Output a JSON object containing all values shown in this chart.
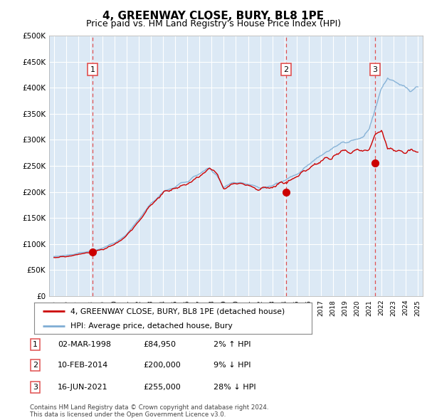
{
  "title": "4, GREENWAY CLOSE, BURY, BL8 1PE",
  "subtitle": "Price paid vs. HM Land Registry's House Price Index (HPI)",
  "ylim": [
    0,
    500000
  ],
  "yticks": [
    0,
    50000,
    100000,
    150000,
    200000,
    250000,
    300000,
    350000,
    400000,
    450000,
    500000
  ],
  "ytick_labels": [
    "£0",
    "£50K",
    "£100K",
    "£150K",
    "£200K",
    "£250K",
    "£300K",
    "£350K",
    "£400K",
    "£450K",
    "£500K"
  ],
  "hpi_color": "#7eadd4",
  "price_color": "#cc0000",
  "marker_color": "#cc0000",
  "vline_color": "#e05050",
  "transactions": [
    {
      "label": "1",
      "date": 1998.17,
      "price": 84950
    },
    {
      "label": "2",
      "date": 2014.12,
      "price": 200000
    },
    {
      "label": "3",
      "date": 2021.46,
      "price": 255000
    }
  ],
  "legend_price_label": "4, GREENWAY CLOSE, BURY, BL8 1PE (detached house)",
  "legend_hpi_label": "HPI: Average price, detached house, Bury",
  "table_rows": [
    [
      "1",
      "02-MAR-1998",
      "£84,950",
      "2% ↑ HPI"
    ],
    [
      "2",
      "10-FEB-2014",
      "£200,000",
      "9% ↓ HPI"
    ],
    [
      "3",
      "16-JUN-2021",
      "£255,000",
      "28% ↓ HPI"
    ]
  ],
  "footer": "Contains HM Land Registry data © Crown copyright and database right 2024.\nThis data is licensed under the Open Government Licence v3.0.",
  "background_color": "#ffffff",
  "plot_bg_color": "#dce9f5",
  "grid_color": "#ffffff",
  "title_fontsize": 11,
  "subtitle_fontsize": 9
}
